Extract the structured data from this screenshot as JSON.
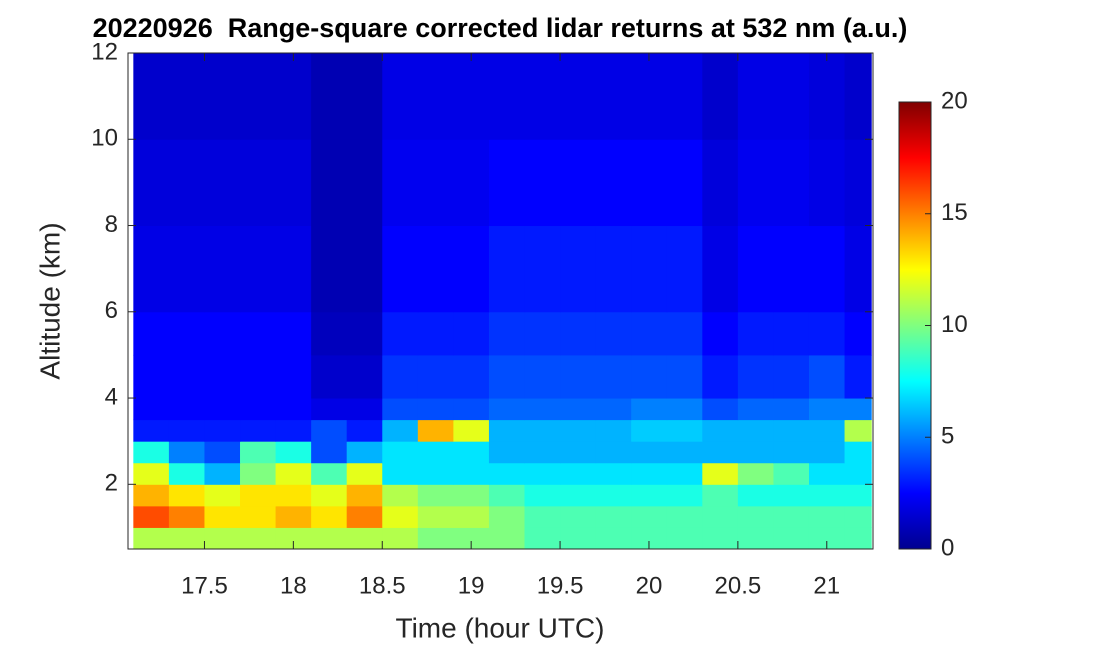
{
  "chart_data": {
    "type": "heatmap",
    "title": "20220926  Range-square corrected lidar returns at 532 nm (a.u.)",
    "xlabel": "Time (hour UTC)",
    "ylabel": "Altitude (km)",
    "x": [
      17.1,
      17.3,
      17.5,
      17.7,
      17.9,
      18.1,
      18.3,
      18.5,
      18.7,
      18.9,
      19.1,
      19.3,
      19.5,
      19.7,
      19.9,
      20.1,
      20.3,
      20.5,
      20.7,
      20.9,
      21.1,
      21.25
    ],
    "y": [
      0.5,
      1,
      1.5,
      2,
      2.5,
      3,
      3.5,
      4,
      5,
      6,
      8,
      10,
      12
    ],
    "z": [
      [
        11,
        11,
        11,
        11,
        11,
        11,
        11,
        11,
        10,
        10,
        10,
        9,
        9,
        9,
        9,
        9,
        9,
        9,
        9,
        9,
        9
      ],
      [
        16,
        15,
        13,
        13,
        14,
        13,
        15,
        12,
        11,
        11,
        10,
        9,
        9,
        9,
        9,
        9,
        9,
        9,
        9,
        9,
        9
      ],
      [
        14,
        13,
        12,
        13,
        13,
        12,
        14,
        11,
        10,
        10,
        9,
        8,
        8,
        8,
        8,
        8,
        9,
        8,
        8,
        8,
        8
      ],
      [
        12,
        8,
        6,
        10,
        12,
        9,
        12,
        7,
        7,
        7,
        7,
        7,
        7,
        7,
        7,
        7,
        12,
        10,
        9,
        7,
        7
      ],
      [
        8,
        5,
        4,
        9,
        8,
        4,
        6,
        7,
        7,
        7,
        6,
        6,
        6,
        6,
        6,
        6,
        6,
        6,
        6,
        6,
        7
      ],
      [
        3,
        3,
        3,
        3,
        3,
        4,
        3,
        6,
        14,
        12,
        6,
        6,
        6,
        6,
        6.5,
        6.5,
        6,
        6,
        6,
        6,
        11
      ],
      [
        2.5,
        2.5,
        2.5,
        2.5,
        2.5,
        2,
        2,
        4,
        4,
        4,
        4.5,
        4.5,
        4.5,
        4.5,
        5,
        5,
        4,
        4.5,
        4.5,
        5,
        5
      ],
      [
        2.5,
        2.5,
        2.5,
        2.5,
        2.5,
        1.5,
        1.5,
        3.5,
        3.5,
        3.5,
        4,
        4,
        4,
        4,
        4,
        4,
        3,
        3.5,
        3.5,
        4,
        3
      ],
      [
        2.5,
        2.5,
        2.5,
        2.5,
        2.5,
        1.2,
        1.2,
        3,
        3,
        3,
        3.5,
        3.5,
        3.5,
        3.5,
        3.5,
        3.5,
        2.5,
        3,
        3,
        3,
        2.5
      ],
      [
        2,
        2,
        2,
        2,
        2,
        1,
        1,
        2.5,
        2.5,
        2.5,
        3,
        3,
        3,
        3,
        3,
        3,
        2,
        2.5,
        2.5,
        2.5,
        2
      ],
      [
        1.8,
        1.8,
        1.8,
        1.8,
        1.8,
        1,
        1,
        2.2,
        2.2,
        2.2,
        2.5,
        2.5,
        2.5,
        2.5,
        2.5,
        2.5,
        1.8,
        2.2,
        2.2,
        2,
        1.8
      ],
      [
        1.5,
        1.5,
        1.5,
        1.5,
        1.5,
        1,
        1,
        2,
        2,
        2,
        2,
        2,
        2,
        2,
        2,
        2,
        1.5,
        2,
        2,
        1.8,
        1.5
      ]
    ],
    "colormap": "jet",
    "xlim": [
      17.07,
      21.26
    ],
    "xticks": [
      17.5,
      18,
      18.5,
      19,
      19.5,
      20,
      20.5,
      21
    ],
    "ylim": [
      0.5,
      12
    ],
    "yticks": [
      2,
      4,
      6,
      8,
      10,
      12
    ],
    "clim": [
      0,
      20
    ],
    "cticks": [
      0,
      5,
      10,
      15,
      20
    ]
  }
}
